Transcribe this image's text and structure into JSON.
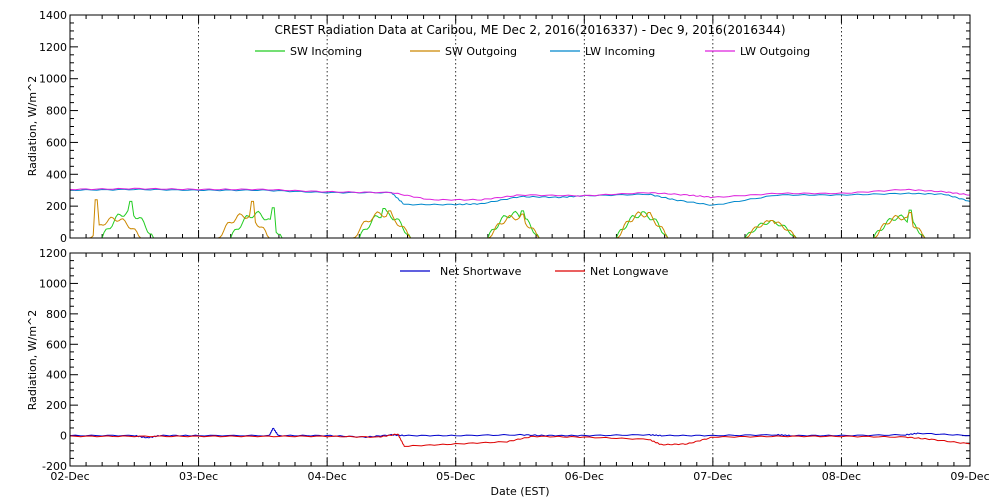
{
  "chart_data": [
    {
      "type": "line",
      "title": "CREST Radiation Data at Caribou, ME   Dec  2, 2016(2016337) - Dec  9, 2016(2016344)",
      "ylabel": "Radiation, W/m^2",
      "xlabel": "",
      "ylim": [
        0,
        1400
      ],
      "yticks": [
        0,
        200,
        400,
        600,
        800,
        1000,
        1200,
        1400
      ],
      "xlim": [
        0,
        7
      ],
      "grid": true,
      "legend": "top",
      "series": [
        {
          "name": "SW Incoming",
          "color": "#22cc22",
          "kind": "sw",
          "days": [
            {
              "start": 0.25,
              "end": 0.65,
              "peak": 160,
              "burst": 0.47,
              "burst_val": 230
            },
            {
              "start": 1.25,
              "end": 1.65,
              "peak": 150,
              "burst": 1.58,
              "burst_val": 190
            },
            {
              "start": 2.25,
              "end": 2.65,
              "peak": 150,
              "burst": 2.44,
              "burst_val": 185
            },
            {
              "start": 3.25,
              "end": 3.65,
              "peak": 150,
              "burst": 3.52,
              "burst_val": 170
            },
            {
              "start": 4.25,
              "end": 4.65,
              "peak": 150,
              "burst": 4.46,
              "burst_val": 165
            },
            {
              "start": 5.25,
              "end": 5.65,
              "peak": 100,
              "burst": 5.46,
              "burst_val": 110
            },
            {
              "start": 6.25,
              "end": 6.65,
              "peak": 130,
              "burst": 6.54,
              "burst_val": 175
            }
          ]
        },
        {
          "name": "SW Outgoing",
          "color": "#cc8800",
          "kind": "sw",
          "days": [
            {
              "start": 0.15,
              "end": 0.55,
              "peak": 120,
              "burst": 0.2,
              "burst_val": 240
            },
            {
              "start": 1.15,
              "end": 1.55,
              "peak": 140,
              "burst": 1.42,
              "burst_val": 230
            },
            {
              "start": 2.2,
              "end": 2.65,
              "peak": 150,
              "burst": 2.48,
              "burst_val": 170
            },
            {
              "start": 3.25,
              "end": 3.65,
              "peak": 130,
              "burst": 3.52,
              "burst_val": 150
            },
            {
              "start": 4.25,
              "end": 4.65,
              "peak": 150,
              "burst": 4.5,
              "burst_val": 160
            },
            {
              "start": 5.25,
              "end": 5.65,
              "peak": 100,
              "burst": 5.46,
              "burst_val": 110
            },
            {
              "start": 6.25,
              "end": 6.65,
              "peak": 130,
              "burst": 6.54,
              "burst_val": 160
            }
          ]
        },
        {
          "name": "LW Incoming",
          "color": "#0088cc",
          "kind": "lw",
          "x": [
            0,
            0.5,
            1.0,
            1.5,
            2.0,
            2.5,
            2.6,
            3.0,
            3.2,
            3.5,
            3.8,
            4.0,
            4.5,
            4.7,
            5.0,
            5.5,
            6.0,
            6.5,
            6.8,
            7.0
          ],
          "y": [
            300,
            305,
            300,
            300,
            285,
            285,
            210,
            210,
            215,
            260,
            255,
            265,
            275,
            240,
            205,
            270,
            270,
            280,
            275,
            230
          ]
        },
        {
          "name": "LW Outgoing",
          "color": "#dd22dd",
          "kind": "lw",
          "x": [
            0,
            0.5,
            1.0,
            1.5,
            2.0,
            2.5,
            2.8,
            3.2,
            3.5,
            4.0,
            4.5,
            4.8,
            5.0,
            5.5,
            6.0,
            6.5,
            6.8,
            7.0
          ],
          "y": [
            305,
            310,
            305,
            305,
            290,
            285,
            240,
            240,
            270,
            265,
            285,
            270,
            255,
            280,
            280,
            305,
            290,
            270
          ]
        }
      ]
    },
    {
      "type": "line",
      "title": "",
      "ylabel": "Radiation, W/m^2",
      "xlabel": "Date (EST)",
      "ylim": [
        -200,
        1200
      ],
      "yticks": [
        -200,
        0,
        200,
        400,
        600,
        800,
        1000,
        1200
      ],
      "xlim": [
        0,
        7
      ],
      "grid": true,
      "legend": "top",
      "xticklabels": [
        "02-Dec",
        "03-Dec",
        "04-Dec",
        "05-Dec",
        "06-Dec",
        "07-Dec",
        "08-Dec",
        "09-Dec"
      ],
      "series": [
        {
          "name": "Net Shortwave",
          "color": "#0000cc",
          "x": [
            0,
            0.5,
            0.6,
            0.7,
            1.0,
            1.55,
            1.58,
            1.62,
            2.0,
            2.3,
            2.5,
            2.6,
            3.0,
            3.5,
            3.7,
            4.0,
            4.5,
            4.6,
            5.0,
            5.5,
            5.6,
            6.0,
            6.5,
            6.6,
            7.0
          ],
          "y": [
            0,
            0,
            -15,
            0,
            0,
            0,
            50,
            0,
            0,
            -10,
            5,
            0,
            0,
            5,
            0,
            0,
            5,
            0,
            0,
            5,
            0,
            0,
            5,
            15,
            0
          ]
        },
        {
          "name": "Net Longwave",
          "color": "#dd0000",
          "x": [
            0,
            0.5,
            1.0,
            1.5,
            2.0,
            2.4,
            2.55,
            2.6,
            3.0,
            3.4,
            3.6,
            4.0,
            4.5,
            4.6,
            4.8,
            5.0,
            5.5,
            6.0,
            6.5,
            6.7,
            7.0
          ],
          "y": [
            -5,
            -5,
            -5,
            -5,
            -5,
            -10,
            10,
            -70,
            -55,
            -40,
            -5,
            -10,
            -25,
            -60,
            -55,
            -10,
            -5,
            -5,
            -10,
            -25,
            -55
          ]
        }
      ]
    }
  ]
}
